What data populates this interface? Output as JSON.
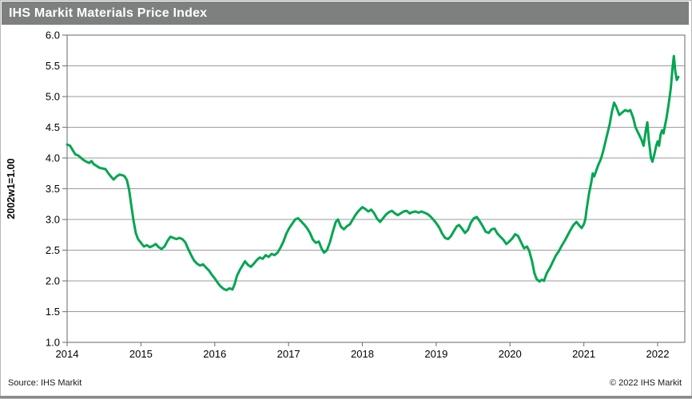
{
  "title_bar": {
    "title": "IHS Markit Materials Price Index",
    "bg_color": "#7e8080",
    "text_color": "#ffffff"
  },
  "footer": {
    "source": "Source: IHS Markit",
    "copyright": "© 2022 IHS Markit"
  },
  "chart_data": {
    "type": "line",
    "title": "IHS Markit Materials Price Index",
    "xlabel": "",
    "ylabel": "2002w1=1.00",
    "ylim": [
      1.0,
      6.0
    ],
    "xlim": [
      2014,
      2022.37
    ],
    "y_ticks": [
      6.0,
      5.5,
      5.0,
      4.5,
      4.0,
      3.5,
      3.0,
      2.5,
      2.0,
      1.5,
      1.0
    ],
    "x_ticks": [
      2014,
      2015,
      2016,
      2017,
      2018,
      2019,
      2020,
      2021,
      2022
    ],
    "grid": "horizontal",
    "legend": "none",
    "line_color": "#00a651",
    "grid_color": "#9b9b9b",
    "axis_color": "#808080",
    "series": [
      {
        "name": "IHS Markit Materials Price Index (2002w1=1.00)",
        "points": [
          [
            2014.0,
            4.22
          ],
          [
            2014.04,
            4.2
          ],
          [
            2014.08,
            4.12
          ],
          [
            2014.11,
            4.06
          ],
          [
            2014.15,
            4.04
          ],
          [
            2014.18,
            4.01
          ],
          [
            2014.22,
            3.97
          ],
          [
            2014.26,
            3.94
          ],
          [
            2014.3,
            3.92
          ],
          [
            2014.33,
            3.95
          ],
          [
            2014.36,
            3.9
          ],
          [
            2014.4,
            3.87
          ],
          [
            2014.44,
            3.84
          ],
          [
            2014.48,
            3.83
          ],
          [
            2014.52,
            3.82
          ],
          [
            2014.56,
            3.75
          ],
          [
            2014.6,
            3.69
          ],
          [
            2014.63,
            3.65
          ],
          [
            2014.67,
            3.7
          ],
          [
            2014.71,
            3.73
          ],
          [
            2014.75,
            3.72
          ],
          [
            2014.78,
            3.7
          ],
          [
            2014.81,
            3.64
          ],
          [
            2014.84,
            3.48
          ],
          [
            2014.87,
            3.22
          ],
          [
            2014.9,
            2.98
          ],
          [
            2014.93,
            2.78
          ],
          [
            2014.96,
            2.68
          ],
          [
            2015.0,
            2.62
          ],
          [
            2015.04,
            2.56
          ],
          [
            2015.08,
            2.58
          ],
          [
            2015.12,
            2.55
          ],
          [
            2015.16,
            2.57
          ],
          [
            2015.2,
            2.6
          ],
          [
            2015.24,
            2.55
          ],
          [
            2015.28,
            2.52
          ],
          [
            2015.32,
            2.56
          ],
          [
            2015.36,
            2.65
          ],
          [
            2015.4,
            2.72
          ],
          [
            2015.44,
            2.7
          ],
          [
            2015.48,
            2.68
          ],
          [
            2015.52,
            2.7
          ],
          [
            2015.56,
            2.68
          ],
          [
            2015.6,
            2.63
          ],
          [
            2015.64,
            2.52
          ],
          [
            2015.68,
            2.42
          ],
          [
            2015.72,
            2.33
          ],
          [
            2015.76,
            2.28
          ],
          [
            2015.8,
            2.25
          ],
          [
            2015.84,
            2.27
          ],
          [
            2015.88,
            2.22
          ],
          [
            2015.92,
            2.17
          ],
          [
            2015.96,
            2.1
          ],
          [
            2016.0,
            2.04
          ],
          [
            2016.04,
            1.97
          ],
          [
            2016.08,
            1.91
          ],
          [
            2016.12,
            1.87
          ],
          [
            2016.16,
            1.85
          ],
          [
            2016.2,
            1.88
          ],
          [
            2016.24,
            1.86
          ],
          [
            2016.27,
            1.95
          ],
          [
            2016.3,
            2.08
          ],
          [
            2016.34,
            2.18
          ],
          [
            2016.38,
            2.26
          ],
          [
            2016.41,
            2.32
          ],
          [
            2016.45,
            2.26
          ],
          [
            2016.49,
            2.23
          ],
          [
            2016.53,
            2.28
          ],
          [
            2016.57,
            2.34
          ],
          [
            2016.61,
            2.38
          ],
          [
            2016.65,
            2.36
          ],
          [
            2016.69,
            2.42
          ],
          [
            2016.73,
            2.39
          ],
          [
            2016.77,
            2.44
          ],
          [
            2016.81,
            2.42
          ],
          [
            2016.85,
            2.46
          ],
          [
            2016.89,
            2.54
          ],
          [
            2016.93,
            2.64
          ],
          [
            2016.97,
            2.77
          ],
          [
            2017.01,
            2.86
          ],
          [
            2017.05,
            2.93
          ],
          [
            2017.09,
            3.0
          ],
          [
            2017.13,
            3.02
          ],
          [
            2017.17,
            2.97
          ],
          [
            2017.21,
            2.92
          ],
          [
            2017.25,
            2.86
          ],
          [
            2017.29,
            2.78
          ],
          [
            2017.33,
            2.67
          ],
          [
            2017.37,
            2.62
          ],
          [
            2017.41,
            2.64
          ],
          [
            2017.45,
            2.52
          ],
          [
            2017.48,
            2.46
          ],
          [
            2017.52,
            2.5
          ],
          [
            2017.56,
            2.63
          ],
          [
            2017.6,
            2.8
          ],
          [
            2017.64,
            2.96
          ],
          [
            2017.67,
            3.0
          ],
          [
            2017.71,
            2.88
          ],
          [
            2017.75,
            2.84
          ],
          [
            2017.79,
            2.89
          ],
          [
            2017.83,
            2.92
          ],
          [
            2017.87,
            3.0
          ],
          [
            2017.91,
            3.08
          ],
          [
            2017.95,
            3.14
          ],
          [
            2018.0,
            3.2
          ],
          [
            2018.04,
            3.17
          ],
          [
            2018.08,
            3.13
          ],
          [
            2018.12,
            3.16
          ],
          [
            2018.16,
            3.1
          ],
          [
            2018.2,
            3.01
          ],
          [
            2018.24,
            2.96
          ],
          [
            2018.28,
            3.02
          ],
          [
            2018.32,
            3.08
          ],
          [
            2018.36,
            3.12
          ],
          [
            2018.4,
            3.14
          ],
          [
            2018.44,
            3.1
          ],
          [
            2018.48,
            3.07
          ],
          [
            2018.52,
            3.1
          ],
          [
            2018.56,
            3.13
          ],
          [
            2018.6,
            3.14
          ],
          [
            2018.64,
            3.1
          ],
          [
            2018.68,
            3.12
          ],
          [
            2018.72,
            3.13
          ],
          [
            2018.76,
            3.11
          ],
          [
            2018.8,
            3.13
          ],
          [
            2018.84,
            3.11
          ],
          [
            2018.88,
            3.09
          ],
          [
            2018.92,
            3.05
          ],
          [
            2018.96,
            3.0
          ],
          [
            2019.0,
            2.94
          ],
          [
            2019.04,
            2.87
          ],
          [
            2019.08,
            2.77
          ],
          [
            2019.12,
            2.7
          ],
          [
            2019.16,
            2.68
          ],
          [
            2019.2,
            2.73
          ],
          [
            2019.24,
            2.81
          ],
          [
            2019.28,
            2.89
          ],
          [
            2019.31,
            2.91
          ],
          [
            2019.35,
            2.85
          ],
          [
            2019.39,
            2.78
          ],
          [
            2019.43,
            2.83
          ],
          [
            2019.47,
            2.95
          ],
          [
            2019.51,
            3.02
          ],
          [
            2019.55,
            3.04
          ],
          [
            2019.59,
            2.97
          ],
          [
            2019.63,
            2.89
          ],
          [
            2019.67,
            2.8
          ],
          [
            2019.71,
            2.78
          ],
          [
            2019.75,
            2.84
          ],
          [
            2019.79,
            2.85
          ],
          [
            2019.83,
            2.77
          ],
          [
            2019.87,
            2.72
          ],
          [
            2019.91,
            2.67
          ],
          [
            2019.95,
            2.6
          ],
          [
            2019.99,
            2.64
          ],
          [
            2020.03,
            2.69
          ],
          [
            2020.07,
            2.76
          ],
          [
            2020.11,
            2.73
          ],
          [
            2020.15,
            2.63
          ],
          [
            2020.19,
            2.53
          ],
          [
            2020.23,
            2.56
          ],
          [
            2020.26,
            2.49
          ],
          [
            2020.3,
            2.31
          ],
          [
            2020.33,
            2.13
          ],
          [
            2020.36,
            2.03
          ],
          [
            2020.4,
            1.99
          ],
          [
            2020.43,
            2.02
          ],
          [
            2020.46,
            2.0
          ],
          [
            2020.5,
            2.13
          ],
          [
            2020.54,
            2.21
          ],
          [
            2020.58,
            2.31
          ],
          [
            2020.62,
            2.41
          ],
          [
            2020.66,
            2.48
          ],
          [
            2020.7,
            2.57
          ],
          [
            2020.74,
            2.65
          ],
          [
            2020.78,
            2.74
          ],
          [
            2020.82,
            2.83
          ],
          [
            2020.86,
            2.91
          ],
          [
            2020.9,
            2.96
          ],
          [
            2020.94,
            2.9
          ],
          [
            2020.97,
            2.86
          ],
          [
            2021.0,
            2.92
          ],
          [
            2021.02,
            3.0
          ],
          [
            2021.04,
            3.18
          ],
          [
            2021.07,
            3.42
          ],
          [
            2021.1,
            3.6
          ],
          [
            2021.12,
            3.75
          ],
          [
            2021.14,
            3.7
          ],
          [
            2021.17,
            3.8
          ],
          [
            2021.2,
            3.9
          ],
          [
            2021.23,
            3.98
          ],
          [
            2021.26,
            4.1
          ],
          [
            2021.29,
            4.25
          ],
          [
            2021.32,
            4.4
          ],
          [
            2021.35,
            4.55
          ],
          [
            2021.38,
            4.75
          ],
          [
            2021.41,
            4.9
          ],
          [
            2021.44,
            4.83
          ],
          [
            2021.48,
            4.7
          ],
          [
            2021.52,
            4.74
          ],
          [
            2021.56,
            4.78
          ],
          [
            2021.6,
            4.76
          ],
          [
            2021.63,
            4.78
          ],
          [
            2021.67,
            4.65
          ],
          [
            2021.7,
            4.5
          ],
          [
            2021.74,
            4.4
          ],
          [
            2021.78,
            4.3
          ],
          [
            2021.81,
            4.2
          ],
          [
            2021.84,
            4.45
          ],
          [
            2021.86,
            4.58
          ],
          [
            2021.88,
            4.3
          ],
          [
            2021.91,
            4.0
          ],
          [
            2021.93,
            3.94
          ],
          [
            2021.96,
            4.08
          ],
          [
            2021.98,
            4.2
          ],
          [
            2022.0,
            4.27
          ],
          [
            2022.02,
            4.2
          ],
          [
            2022.04,
            4.38
          ],
          [
            2022.06,
            4.45
          ],
          [
            2022.08,
            4.4
          ],
          [
            2022.1,
            4.53
          ],
          [
            2022.12,
            4.65
          ],
          [
            2022.14,
            4.8
          ],
          [
            2022.16,
            4.97
          ],
          [
            2022.18,
            5.15
          ],
          [
            2022.2,
            5.45
          ],
          [
            2022.22,
            5.66
          ],
          [
            2022.24,
            5.4
          ],
          [
            2022.26,
            5.27
          ],
          [
            2022.28,
            5.32
          ]
        ]
      }
    ]
  }
}
